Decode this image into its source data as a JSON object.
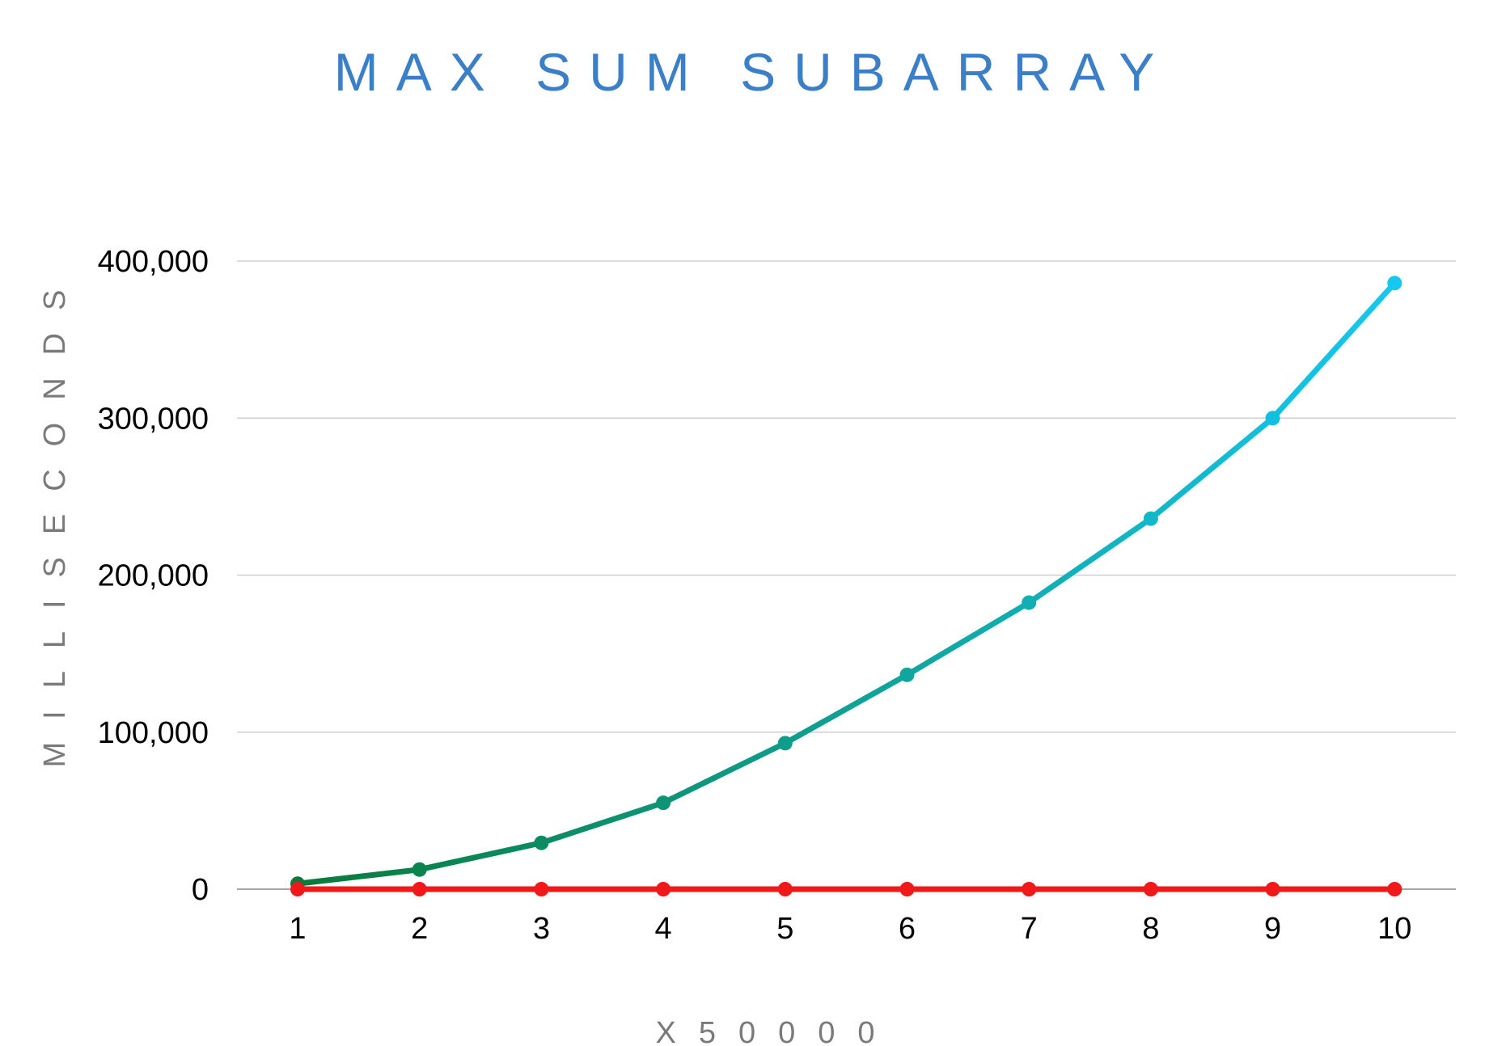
{
  "chart_data": {
    "type": "line",
    "title": "MAX SUM SUBARRAY",
    "xlabel": "X50000",
    "ylabel": "MILLISECONDS",
    "categories": [
      "1",
      "2",
      "3",
      "4",
      "5",
      "6",
      "7",
      "8",
      "9",
      "10"
    ],
    "ylim": [
      0,
      400000
    ],
    "yticks": [
      0,
      100000,
      200000,
      300000,
      400000
    ],
    "ytick_labels": [
      "0",
      "100,000",
      "200,000",
      "300,000",
      "400,000"
    ],
    "grid": true,
    "legend": "none",
    "series": [
      {
        "values": [
          3500,
          12500,
          29500,
          55000,
          93000,
          136500,
          182500,
          236000,
          300000,
          386000
        ],
        "color_start": "#0A7A3A",
        "color_end": "#14C8F0"
      },
      {
        "values": [
          0,
          0,
          0,
          0,
          0,
          0,
          0,
          0,
          0,
          0
        ],
        "color": "#F01818"
      }
    ]
  }
}
